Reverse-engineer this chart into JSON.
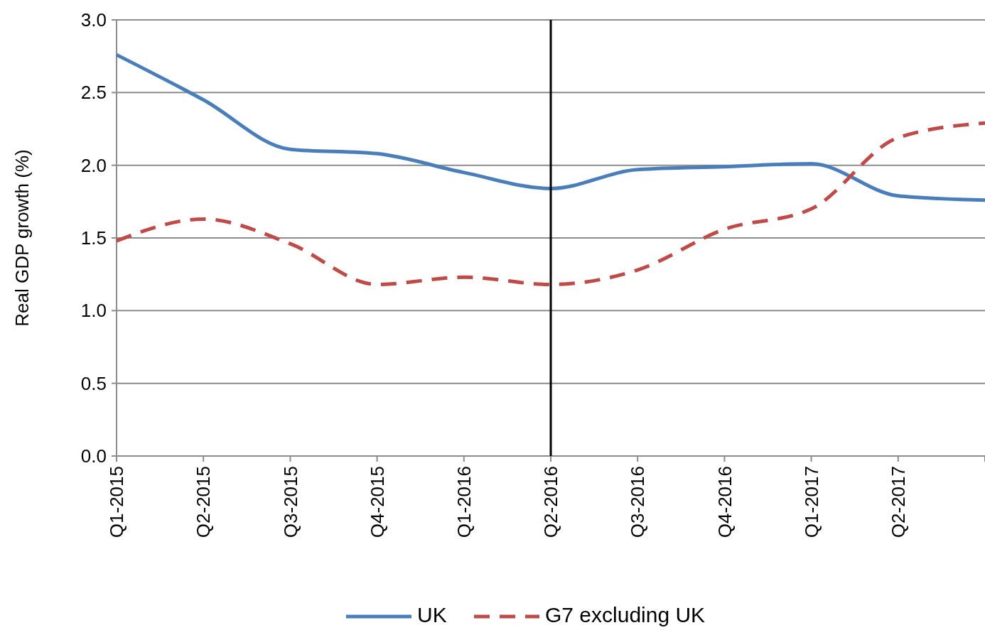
{
  "chart_data": {
    "type": "line",
    "ylabel": "Real GDP growth (%)",
    "categories": [
      "Q1-2015",
      "Q2-2015",
      "Q3-2015",
      "Q4-2015",
      "Q1-2016",
      "Q2-2016",
      "Q3-2016",
      "Q4-2016",
      "Q1-2017",
      "Q2-2017",
      null
    ],
    "series": [
      {
        "name": "UK",
        "color": "#4a7ebb",
        "line_style": "solid",
        "values": [
          2.76,
          2.45,
          2.11,
          2.08,
          1.95,
          1.84,
          1.97,
          1.99,
          2.01,
          1.79,
          1.76
        ]
      },
      {
        "name": "G7 excluding UK",
        "color": "#be4b48",
        "line_style": "dashed",
        "values": [
          1.48,
          1.63,
          1.46,
          1.18,
          1.23,
          1.18,
          1.28,
          1.56,
          1.7,
          2.19,
          2.29
        ]
      }
    ],
    "ylim": [
      0,
      3
    ],
    "yticks": [
      {
        "value": 0,
        "label": "0.0"
      },
      {
        "value": 0.5,
        "label": "0.5"
      },
      {
        "value": 1,
        "label": "1.0"
      },
      {
        "value": 1.5,
        "label": "1.5"
      },
      {
        "value": 2,
        "label": "2.0"
      },
      {
        "value": 2.5,
        "label": "2.5"
      },
      {
        "value": 3,
        "label": "3.0"
      }
    ],
    "grid": "y",
    "legend": "bottom",
    "marker": "none",
    "ref_lines": [
      {
        "axis": "x",
        "value": "Q2-2016",
        "color": "#000000"
      }
    ]
  }
}
